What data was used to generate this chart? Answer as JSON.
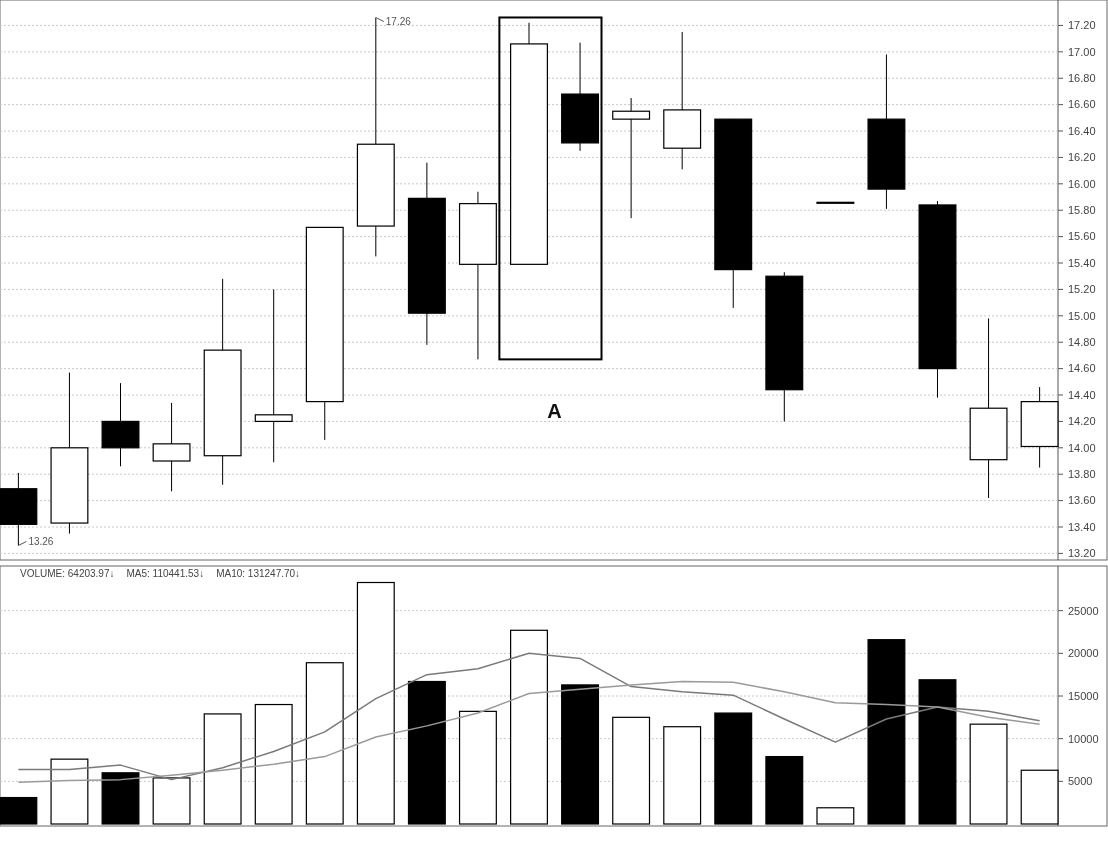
{
  "chart_data": [
    {
      "type": "candlestick",
      "categories": [
        null,
        null,
        null,
        null,
        null,
        null,
        null,
        null,
        null,
        null,
        null,
        null,
        null,
        null,
        null,
        null,
        null,
        null,
        null,
        null,
        null
      ],
      "ohlc": [
        [
          13.69,
          13.81,
          13.26,
          13.42
        ],
        [
          13.43,
          14.57,
          13.35,
          14.0
        ],
        [
          14.2,
          14.49,
          13.86,
          14.0
        ],
        [
          13.9,
          14.34,
          13.67,
          14.03
        ],
        [
          13.94,
          15.28,
          13.72,
          14.74
        ],
        [
          14.2,
          15.2,
          13.89,
          14.25
        ],
        [
          14.35,
          15.67,
          14.06,
          15.67
        ],
        [
          15.68,
          17.26,
          15.45,
          16.3
        ],
        [
          15.89,
          16.16,
          14.78,
          15.02
        ],
        [
          15.39,
          15.94,
          14.67,
          15.85
        ],
        [
          15.39,
          17.22,
          15.39,
          17.06
        ],
        [
          16.68,
          17.07,
          16.25,
          16.31
        ],
        [
          16.49,
          16.65,
          15.74,
          16.55
        ],
        [
          16.27,
          17.15,
          16.11,
          16.56
        ],
        [
          16.49,
          16.49,
          15.06,
          15.35
        ],
        [
          15.3,
          15.33,
          14.2,
          14.44
        ],
        [
          15.86,
          15.86,
          15.86,
          15.86
        ],
        [
          16.49,
          16.98,
          15.81,
          15.96
        ],
        [
          15.84,
          15.87,
          14.38,
          14.6
        ],
        [
          13.91,
          14.98,
          13.62,
          14.3
        ],
        [
          14.01,
          14.46,
          13.85,
          14.35
        ]
      ],
      "colors": [
        "#000000",
        "#ffffff",
        "#000000",
        "#ffffff",
        "#ffffff",
        "#ffffff",
        "#ffffff",
        "#ffffff",
        "#000000",
        "#ffffff",
        "#ffffff",
        "#000000",
        "#ffffff",
        "#ffffff",
        "#000000",
        "#000000",
        "#ffffff",
        "#000000",
        "#000000",
        "#ffffff",
        "#ffffff"
      ],
      "ylim": [
        13.15,
        17.37
      ],
      "yticks": [
        {
          "value": 13.2,
          "label": "13.20"
        },
        {
          "value": 13.4,
          "label": "13.40"
        },
        {
          "value": 13.6,
          "label": "13.60"
        },
        {
          "value": 13.8,
          "label": "13.80"
        },
        {
          "value": 14.0,
          "label": "14.00"
        },
        {
          "value": 14.2,
          "label": "14.20"
        },
        {
          "value": 14.4,
          "label": "14.40"
        },
        {
          "value": 14.6,
          "label": "14.60"
        },
        {
          "value": 14.8,
          "label": "14.80"
        },
        {
          "value": 15.0,
          "label": "15.00"
        },
        {
          "value": 15.2,
          "label": "15.20"
        },
        {
          "value": 15.4,
          "label": "15.40"
        },
        {
          "value": 15.6,
          "label": "15.60"
        },
        {
          "value": 15.8,
          "label": "15.80"
        },
        {
          "value": 16.0,
          "label": "16.00"
        },
        {
          "value": 16.2,
          "label": "16.20"
        },
        {
          "value": 16.4,
          "label": "16.40"
        },
        {
          "value": 16.6,
          "label": "16.60"
        },
        {
          "value": 16.8,
          "label": "16.80"
        },
        {
          "value": 17.0,
          "label": "17.00"
        },
        {
          "value": 17.2,
          "label": "17.20"
        }
      ],
      "grid": "y",
      "tick_labels": "y",
      "annotations": [
        "17.26",
        "13.26",
        "A"
      ]
    },
    {
      "type": "bar",
      "categories": [
        null,
        null,
        null,
        null,
        null,
        null,
        null,
        null,
        null,
        null,
        null,
        null,
        null,
        null,
        null,
        null,
        null,
        null,
        null,
        null,
        null
      ],
      "series": [
        {
          "type": "bar",
          "values": [
            3100,
            7600,
            6000,
            5400,
            12900,
            14000,
            18900,
            28300,
            16700,
            13200,
            22700,
            16300,
            12500,
            11400,
            13000,
            7900,
            1900,
            21600,
            16900,
            11700,
            6300
          ],
          "colors": [
            "#000000",
            "#ffffff",
            "#000000",
            "#ffffff",
            "#ffffff",
            "#ffffff",
            "#ffffff",
            "#ffffff",
            "#000000",
            "#ffffff",
            "#ffffff",
            "#000000",
            "#ffffff",
            "#ffffff",
            "#000000",
            "#000000",
            "#ffffff",
            "#000000",
            "#000000",
            "#ffffff",
            "#ffffff"
          ]
        },
        {
          "type": "line",
          "color": "#7a7a7a",
          "values": [
            6400,
            6400,
            6900,
            5200,
            6600,
            8500,
            10800,
            14700,
            17500,
            18200,
            20000,
            19400,
            16100,
            15500,
            15100,
            12300,
            9600,
            12300,
            13700,
            13200,
            12100
          ]
        },
        {
          "type": "line",
          "color": "#9a9a9a",
          "values": [
            4900,
            5100,
            5200,
            5700,
            6300,
            7000,
            7900,
            10200,
            11500,
            13000,
            15300,
            15800,
            16300,
            16700,
            16600,
            15500,
            14200,
            14000,
            13700,
            12500,
            11700
          ]
        }
      ],
      "ylim": [
        0,
        30000
      ],
      "yticks": [
        5000,
        10000,
        15000,
        20000,
        25000
      ],
      "grid": "y",
      "tick_labels": "y",
      "annotations": [
        "VOLUME: 64203.97↓",
        "MA5: 110441.53↓",
        "MA10: 131247.70↓"
      ]
    }
  ]
}
